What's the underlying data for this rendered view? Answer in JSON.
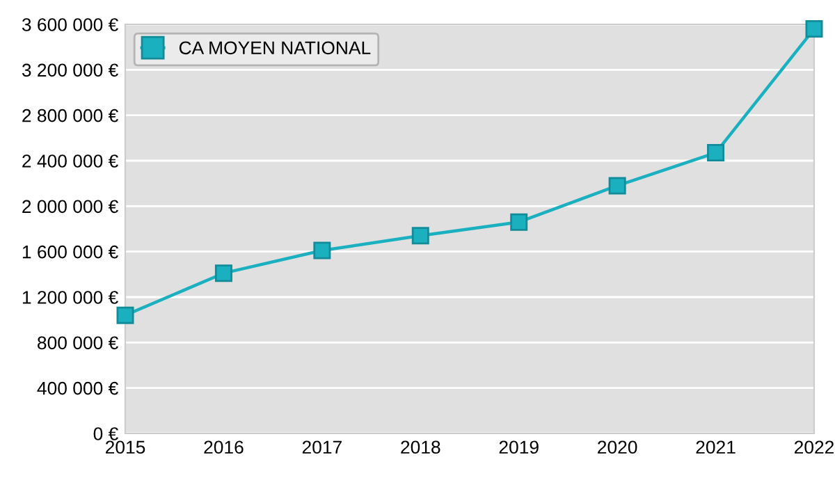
{
  "chart_data": {
    "type": "line",
    "x": [
      2015,
      2016,
      2017,
      2018,
      2019,
      2020,
      2021,
      2022
    ],
    "series": [
      {
        "name": "CA MOYEN NATIONAL",
        "color": "#1ab0c0",
        "values": [
          1040000,
          1410000,
          1610000,
          1740000,
          1860000,
          2180000,
          2470000,
          3560000
        ]
      }
    ],
    "xlim": [
      2015,
      2022
    ],
    "xticks": [
      2015,
      2016,
      2017,
      2018,
      2019,
      2020,
      2021,
      2022
    ],
    "ylim": [
      0,
      3600000
    ],
    "yticks": [
      {
        "value": 0,
        "label": "0 €"
      },
      {
        "value": 400000,
        "label": "400 000 €"
      },
      {
        "value": 800000,
        "label": "800 000 €"
      },
      {
        "value": 1200000,
        "label": "1 200 000 €"
      },
      {
        "value": 1600000,
        "label": "1 600 000 €"
      },
      {
        "value": 2000000,
        "label": "2 000 000 €"
      },
      {
        "value": 2400000,
        "label": "2 400 000 €"
      },
      {
        "value": 2800000,
        "label": "2 800 000 €"
      },
      {
        "value": 3200000,
        "label": "3 200 000 €"
      },
      {
        "value": 3600000,
        "label": "3 600 000 €"
      }
    ],
    "grid": "y",
    "legend": "top left",
    "marker": "square",
    "line_style": "solid"
  }
}
